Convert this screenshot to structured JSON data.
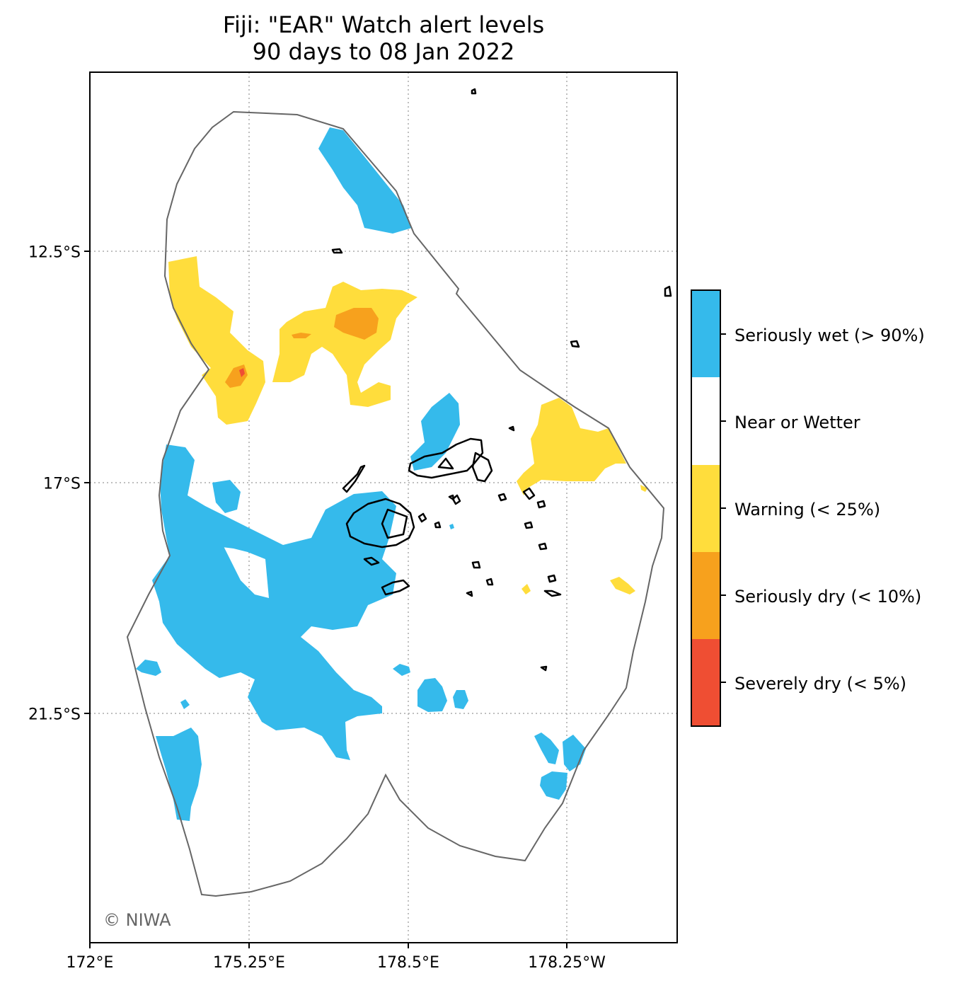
{
  "title": {
    "line1": "Fiji: \"EAR\" Watch alert levels",
    "line2": "90 days to 08 Jan 2022"
  },
  "axes": {
    "x_ticks": [
      "172°E",
      "175.25°E",
      "178.5°E",
      "178.25°W"
    ],
    "y_ticks": [
      "12.5°S",
      "17°S",
      "21.5°S"
    ]
  },
  "credit": "© NIWA",
  "legend": {
    "items": [
      {
        "label": "Seriously wet (> 90%)",
        "color": "#35baeb"
      },
      {
        "label": "Near or Wetter",
        "color": "#ffffff"
      },
      {
        "label": "Warning (< 25%)",
        "color": "#ffdd3c"
      },
      {
        "label": "Seriously dry (< 10%)",
        "color": "#f7a11d"
      },
      {
        "label": "Severely dry (< 5%)",
        "color": "#ef4e33"
      }
    ]
  },
  "colors": {
    "wet": "#35baeb",
    "warning": "#ffdd3c",
    "dry": "#f7a11d",
    "severe": "#ef4e33",
    "eez_outline": "#666666",
    "grid": "#aaaaaa"
  }
}
